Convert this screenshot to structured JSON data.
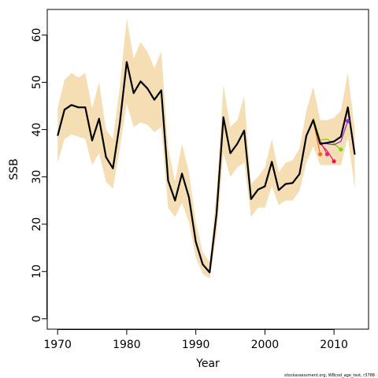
{
  "chart_data": {
    "type": "line",
    "xlabel": "Year",
    "ylabel": "SSB",
    "xlim": [
      1968.5,
      2015.0
    ],
    "ylim": [
      -2.2,
      65.4
    ],
    "xticks": [
      1970,
      1980,
      1990,
      2000,
      2010
    ],
    "yticks": [
      0,
      10,
      20,
      30,
      40,
      50,
      60
    ],
    "footnote": "stockassessment.org, WBcod_age_test, r3788",
    "colors": {
      "band": "#F5DEB3",
      "main": "#000000",
      "retro": [
        "#E31A4A",
        "#FF1493",
        "#FF6A1A",
        "#7CD600",
        "#9B1FE8"
      ]
    },
    "band": {
      "x": [
        1970,
        1971,
        1972,
        1973,
        1974,
        1975,
        1976,
        1977,
        1978,
        1979,
        1980,
        1981,
        1982,
        1983,
        1984,
        1985,
        1986,
        1987,
        1988,
        1989,
        1990,
        1991,
        1992,
        1993,
        1994,
        1995,
        1996,
        1997,
        1998,
        1999,
        2000,
        2001,
        2002,
        2003,
        2004,
        2005,
        2006,
        2007,
        2008,
        2009,
        2010,
        2011,
        2012,
        2013
      ],
      "lower": [
        33,
        38,
        39,
        38.5,
        38,
        32.5,
        35,
        29,
        27.5,
        36,
        45.5,
        40.5,
        41.5,
        41,
        39.5,
        40.5,
        23.5,
        21.5,
        24.5,
        20.5,
        13,
        9.5,
        8.5,
        18,
        35,
        30,
        32,
        33,
        21.5,
        23.5,
        23.5,
        28,
        24,
        25,
        25,
        27,
        33,
        36.5,
        32.5,
        32.5,
        32.5,
        32.5,
        38.5,
        27.5
      ],
      "upper": [
        44.5,
        50.5,
        52,
        51,
        52,
        44.5,
        50,
        40,
        38,
        49,
        63.5,
        55,
        58.5,
        56.5,
        53,
        56.5,
        36,
        29,
        37,
        31,
        20.5,
        14,
        12,
        27,
        49.5,
        40.5,
        42,
        47,
        28.5,
        30,
        32,
        38,
        31,
        33,
        33.5,
        36,
        44,
        49,
        42,
        42,
        42.5,
        44,
        52,
        40
      ]
    },
    "series": [
      {
        "x": [
          1970,
          1971,
          1972,
          1973,
          1974,
          1975,
          1976,
          1977,
          1978,
          1979,
          1980,
          1981,
          1982,
          1983,
          1984,
          1985,
          1986,
          1987,
          1988,
          1989,
          1990,
          1991,
          1992,
          1993,
          1994,
          1995,
          1996,
          1997,
          1998,
          1999,
          2000,
          2001,
          2002,
          2003,
          2004,
          2005,
          2006,
          2007,
          2008,
          2009,
          2010,
          2011,
          2012,
          2013
        ],
        "values": [
          38.7,
          44.2,
          45.2,
          44.7,
          44.7,
          37.7,
          42.3,
          34.2,
          31.8,
          41.3,
          54.3,
          47.7,
          50.2,
          48.7,
          46.3,
          48.3,
          29.2,
          25.0,
          30.7,
          25.7,
          16.3,
          11.5,
          9.8,
          22.2,
          42.6,
          35.0,
          37.0,
          39.8,
          25.3,
          27.3,
          28.0,
          33.2,
          27.2,
          28.5,
          28.7,
          30.6,
          38.7,
          42.0,
          37.0,
          37.2,
          37.5,
          38.5,
          44.7,
          34.7
        ]
      },
      {
        "x": [
          2007,
          2008,
          2009,
          2010
        ],
        "values": [
          41.7,
          37.0,
          35.5,
          33.3
        ]
      },
      {
        "x": [
          2007,
          2008,
          2009
        ],
        "values": [
          41.8,
          37.5,
          34.8
        ]
      },
      {
        "x": [
          2007,
          2008
        ],
        "values": [
          41.9,
          34.8
        ]
      },
      {
        "x": [
          2007,
          2008,
          2009,
          2010,
          2011
        ],
        "values": [
          42.4,
          37.8,
          38.0,
          37.0,
          35.8
        ]
      },
      {
        "x": [
          2007,
          2008,
          2009,
          2010,
          2011,
          2012
        ],
        "values": [
          42.2,
          37.3,
          37.0,
          36.8,
          37.5,
          41.8
        ]
      }
    ]
  }
}
